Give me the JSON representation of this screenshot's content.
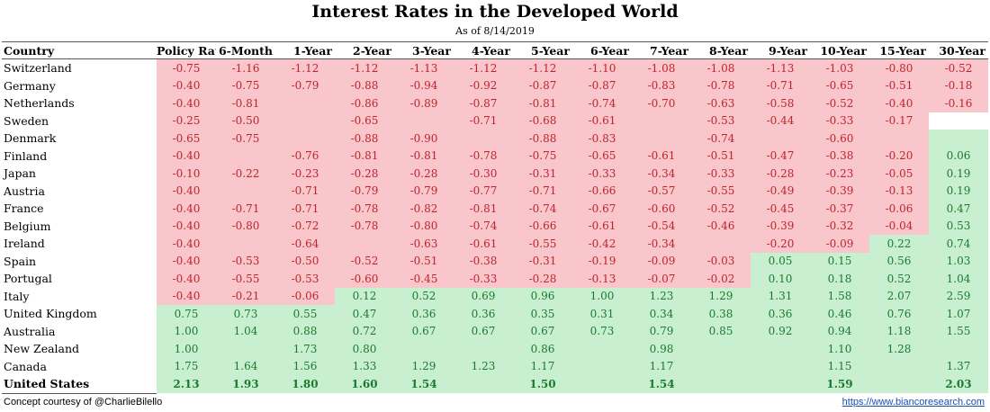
{
  "title": "Interest Rates in the Developed World",
  "subtitle": "As of 8/14/2019",
  "footer": {
    "credit": "Concept courtesy of @CharlieBilello",
    "url": "https://www.biancoresearch.com"
  },
  "colors": {
    "negative_bg": "#f8c6cb",
    "negative_text": "#c0232c",
    "positive_bg": "#c9efd1",
    "positive_text": "#1b7a2e"
  },
  "chart_data": {
    "type": "table",
    "title": "Interest Rates in the Developed World",
    "subtitle": "As of 8/14/2019",
    "row_header": "Country",
    "columns": [
      "Policy Rate",
      "6-Month",
      "1-Year",
      "2-Year",
      "3-Year",
      "4-Year",
      "5-Year",
      "6-Year",
      "7-Year",
      "8-Year",
      "9-Year",
      "10-Year",
      "15-Year",
      "30-Year"
    ],
    "rows": [
      {
        "country": "Switzerland",
        "values": [
          "-0.75",
          "-1.16",
          "-1.12",
          "-1.12",
          "-1.13",
          "-1.12",
          "-1.12",
          "-1.10",
          "-1.08",
          "-1.08",
          "-1.13",
          "-1.03",
          "-0.80",
          "-0.52"
        ],
        "shade": [
          "n",
          "n",
          "n",
          "n",
          "n",
          "n",
          "n",
          "n",
          "n",
          "n",
          "n",
          "n",
          "n",
          "n"
        ]
      },
      {
        "country": "Germany",
        "values": [
          "-0.40",
          "-0.75",
          "-0.79",
          "-0.88",
          "-0.94",
          "-0.92",
          "-0.87",
          "-0.87",
          "-0.83",
          "-0.78",
          "-0.71",
          "-0.65",
          "-0.51",
          "-0.18"
        ],
        "shade": [
          "n",
          "n",
          "n",
          "n",
          "n",
          "n",
          "n",
          "n",
          "n",
          "n",
          "n",
          "n",
          "n",
          "n"
        ]
      },
      {
        "country": "Netherlands",
        "values": [
          "-0.40",
          "-0.81",
          "",
          "-0.86",
          "-0.89",
          "-0.87",
          "-0.81",
          "-0.74",
          "-0.70",
          "-0.63",
          "-0.58",
          "-0.52",
          "-0.40",
          "-0.16"
        ],
        "shade": [
          "n",
          "n",
          "n",
          "n",
          "n",
          "n",
          "n",
          "n",
          "n",
          "n",
          "n",
          "n",
          "n",
          "n"
        ]
      },
      {
        "country": "Sweden",
        "values": [
          "-0.25",
          "-0.50",
          "",
          "-0.65",
          "",
          "-0.71",
          "-0.68",
          "-0.61",
          "",
          "-0.53",
          "-0.44",
          "-0.33",
          "-0.17",
          ""
        ],
        "shade": [
          "n",
          "n",
          "n",
          "n",
          "n",
          "n",
          "n",
          "n",
          "n",
          "n",
          "n",
          "n",
          "n",
          "b"
        ]
      },
      {
        "country": "Denmark",
        "values": [
          "-0.65",
          "-0.75",
          "",
          "-0.88",
          "-0.90",
          "",
          "-0.88",
          "-0.83",
          "",
          "-0.74",
          "",
          "-0.60",
          "",
          ""
        ],
        "shade": [
          "n",
          "n",
          "n",
          "n",
          "n",
          "n",
          "n",
          "n",
          "n",
          "n",
          "n",
          "n",
          "n",
          "p"
        ]
      },
      {
        "country": "Finland",
        "values": [
          "-0.40",
          "",
          "-0.76",
          "-0.81",
          "-0.81",
          "-0.78",
          "-0.75",
          "-0.65",
          "-0.61",
          "-0.51",
          "-0.47",
          "-0.38",
          "-0.20",
          "0.06"
        ],
        "shade": [
          "n",
          "n",
          "n",
          "n",
          "n",
          "n",
          "n",
          "n",
          "n",
          "n",
          "n",
          "n",
          "n",
          "p"
        ]
      },
      {
        "country": "Japan",
        "values": [
          "-0.10",
          "-0.22",
          "-0.23",
          "-0.28",
          "-0.28",
          "-0.30",
          "-0.31",
          "-0.33",
          "-0.34",
          "-0.33",
          "-0.28",
          "-0.23",
          "-0.05",
          "0.19"
        ],
        "shade": [
          "n",
          "n",
          "n",
          "n",
          "n",
          "n",
          "n",
          "n",
          "n",
          "n",
          "n",
          "n",
          "n",
          "p"
        ]
      },
      {
        "country": "Austria",
        "values": [
          "-0.40",
          "",
          "-0.71",
          "-0.79",
          "-0.79",
          "-0.77",
          "-0.71",
          "-0.66",
          "-0.57",
          "-0.55",
          "-0.49",
          "-0.39",
          "-0.13",
          "0.19"
        ],
        "shade": [
          "n",
          "n",
          "n",
          "n",
          "n",
          "n",
          "n",
          "n",
          "n",
          "n",
          "n",
          "n",
          "n",
          "p"
        ]
      },
      {
        "country": "France",
        "values": [
          "-0.40",
          "-0.71",
          "-0.71",
          "-0.78",
          "-0.82",
          "-0.81",
          "-0.74",
          "-0.67",
          "-0.60",
          "-0.52",
          "-0.45",
          "-0.37",
          "-0.06",
          "0.47"
        ],
        "shade": [
          "n",
          "n",
          "n",
          "n",
          "n",
          "n",
          "n",
          "n",
          "n",
          "n",
          "n",
          "n",
          "n",
          "p"
        ]
      },
      {
        "country": "Belgium",
        "values": [
          "-0.40",
          "-0.80",
          "-0.72",
          "-0.78",
          "-0.80",
          "-0.74",
          "-0.66",
          "-0.61",
          "-0.54",
          "-0.46",
          "-0.39",
          "-0.32",
          "-0.04",
          "0.53"
        ],
        "shade": [
          "n",
          "n",
          "n",
          "n",
          "n",
          "n",
          "n",
          "n",
          "n",
          "n",
          "n",
          "n",
          "n",
          "p"
        ]
      },
      {
        "country": "Ireland",
        "values": [
          "-0.40",
          "",
          "-0.64",
          "",
          "-0.63",
          "-0.61",
          "-0.55",
          "-0.42",
          "-0.34",
          "",
          "-0.20",
          "-0.09",
          "0.22",
          "0.74"
        ],
        "shade": [
          "n",
          "n",
          "n",
          "n",
          "n",
          "n",
          "n",
          "n",
          "n",
          "n",
          "n",
          "n",
          "p",
          "p"
        ]
      },
      {
        "country": "Spain",
        "values": [
          "-0.40",
          "-0.53",
          "-0.50",
          "-0.52",
          "-0.51",
          "-0.38",
          "-0.31",
          "-0.19",
          "-0.09",
          "-0.03",
          "0.05",
          "0.15",
          "0.56",
          "1.03"
        ],
        "shade": [
          "n",
          "n",
          "n",
          "n",
          "n",
          "n",
          "n",
          "n",
          "n",
          "n",
          "p",
          "p",
          "p",
          "p"
        ]
      },
      {
        "country": "Portugal",
        "values": [
          "-0.40",
          "-0.55",
          "-0.53",
          "-0.60",
          "-0.45",
          "-0.33",
          "-0.28",
          "-0.13",
          "-0.07",
          "-0.02",
          "0.10",
          "0.18",
          "0.52",
          "1.04"
        ],
        "shade": [
          "n",
          "n",
          "n",
          "n",
          "n",
          "n",
          "n",
          "n",
          "n",
          "n",
          "p",
          "p",
          "p",
          "p"
        ]
      },
      {
        "country": "Italy",
        "values": [
          "-0.40",
          "-0.21",
          "-0.06",
          "0.12",
          "0.52",
          "0.69",
          "0.96",
          "1.00",
          "1.23",
          "1.29",
          "1.31",
          "1.58",
          "2.07",
          "2.59"
        ],
        "shade": [
          "n",
          "n",
          "n",
          "p",
          "p",
          "p",
          "p",
          "p",
          "p",
          "p",
          "p",
          "p",
          "p",
          "p"
        ]
      },
      {
        "country": "United Kingdom",
        "values": [
          "0.75",
          "0.73",
          "0.55",
          "0.47",
          "0.36",
          "0.36",
          "0.35",
          "0.31",
          "0.34",
          "0.38",
          "0.36",
          "0.46",
          "0.76",
          "1.07"
        ],
        "shade": [
          "p",
          "p",
          "p",
          "p",
          "p",
          "p",
          "p",
          "p",
          "p",
          "p",
          "p",
          "p",
          "p",
          "p"
        ]
      },
      {
        "country": "Australia",
        "values": [
          "1.00",
          "1.04",
          "0.88",
          "0.72",
          "0.67",
          "0.67",
          "0.67",
          "0.73",
          "0.79",
          "0.85",
          "0.92",
          "0.94",
          "1.18",
          "1.55"
        ],
        "shade": [
          "p",
          "p",
          "p",
          "p",
          "p",
          "p",
          "p",
          "p",
          "p",
          "p",
          "p",
          "p",
          "p",
          "p"
        ]
      },
      {
        "country": "New Zealand",
        "values": [
          "1.00",
          "",
          "1.73",
          "0.80",
          "",
          "",
          "0.86",
          "",
          "0.98",
          "",
          "",
          "1.10",
          "1.28",
          ""
        ],
        "shade": [
          "p",
          "p",
          "p",
          "p",
          "p",
          "p",
          "p",
          "p",
          "p",
          "p",
          "p",
          "p",
          "p",
          "p"
        ]
      },
      {
        "country": "Canada",
        "values": [
          "1.75",
          "1.64",
          "1.56",
          "1.33",
          "1.29",
          "1.23",
          "1.17",
          "",
          "1.17",
          "",
          "",
          "1.15",
          "",
          "1.37"
        ],
        "shade": [
          "p",
          "p",
          "p",
          "p",
          "p",
          "p",
          "p",
          "p",
          "p",
          "p",
          "p",
          "p",
          "p",
          "p"
        ]
      },
      {
        "country": "United States",
        "values": [
          "2.13",
          "1.93",
          "1.80",
          "1.60",
          "1.54",
          "",
          "1.50",
          "",
          "1.54",
          "",
          "",
          "1.59",
          "",
          "2.03"
        ],
        "shade": [
          "p",
          "p",
          "p",
          "p",
          "p",
          "p",
          "p",
          "p",
          "p",
          "p",
          "p",
          "p",
          "p",
          "p"
        ],
        "bold": true
      }
    ]
  }
}
